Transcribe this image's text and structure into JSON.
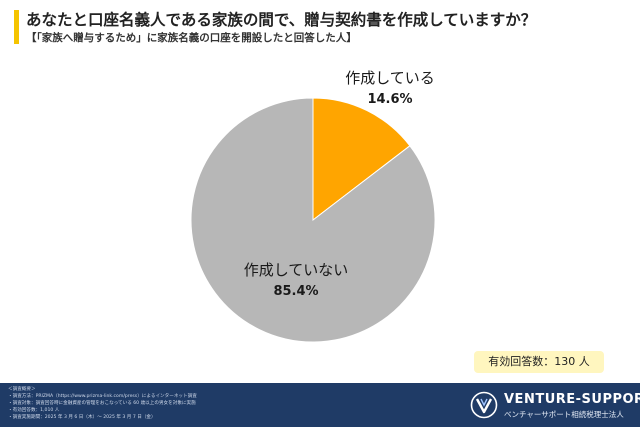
{
  "header": {
    "title": "あなたと口座名義人である家族の間で、贈与契約書を作成していますか？",
    "subtitle": "【「家族へ贈与するため」に家族名義の口座を開設したと回答した人】"
  },
  "chart_data": {
    "type": "pie",
    "title": "あなたと口座名義人である家族の間で、贈与契約書を作成していますか？",
    "start": "top",
    "direction": "clockwise",
    "slices": [
      {
        "label": "作成している",
        "value": 14.6,
        "value_text": "14.6%",
        "color": "#ffa500"
      },
      {
        "label": "作成していない",
        "value": 85.4,
        "value_text": "85.4%",
        "color": "#b7b7b7"
      }
    ]
  },
  "badge": {
    "text": "有効回答数：130 人"
  },
  "footer": {
    "notes": [
      "＜調査概要＞",
      "・調査方法：PRIZMA（https://www.prizma-link.com/press）によるインターネット調査",
      "・調査対象：調査回答時に金融資産の管理をおこなっている 60 歳以上の男女を対象に実施",
      "・有効回答数：1,010 人",
      "・調査実施期間：2025 年 3 月 6 日（木）～ 2025 年 3 月 7 日（金）"
    ],
    "logo_name": "VENTURE-SUPPORT",
    "logo_sub": "ベンチャーサポート相続税理士法人",
    "logo_icon": "v-mark-icon"
  },
  "colors": {
    "accent": "#f5c400",
    "footer_bg": "#1f3b66",
    "badge_bg": "#fff6bf"
  }
}
